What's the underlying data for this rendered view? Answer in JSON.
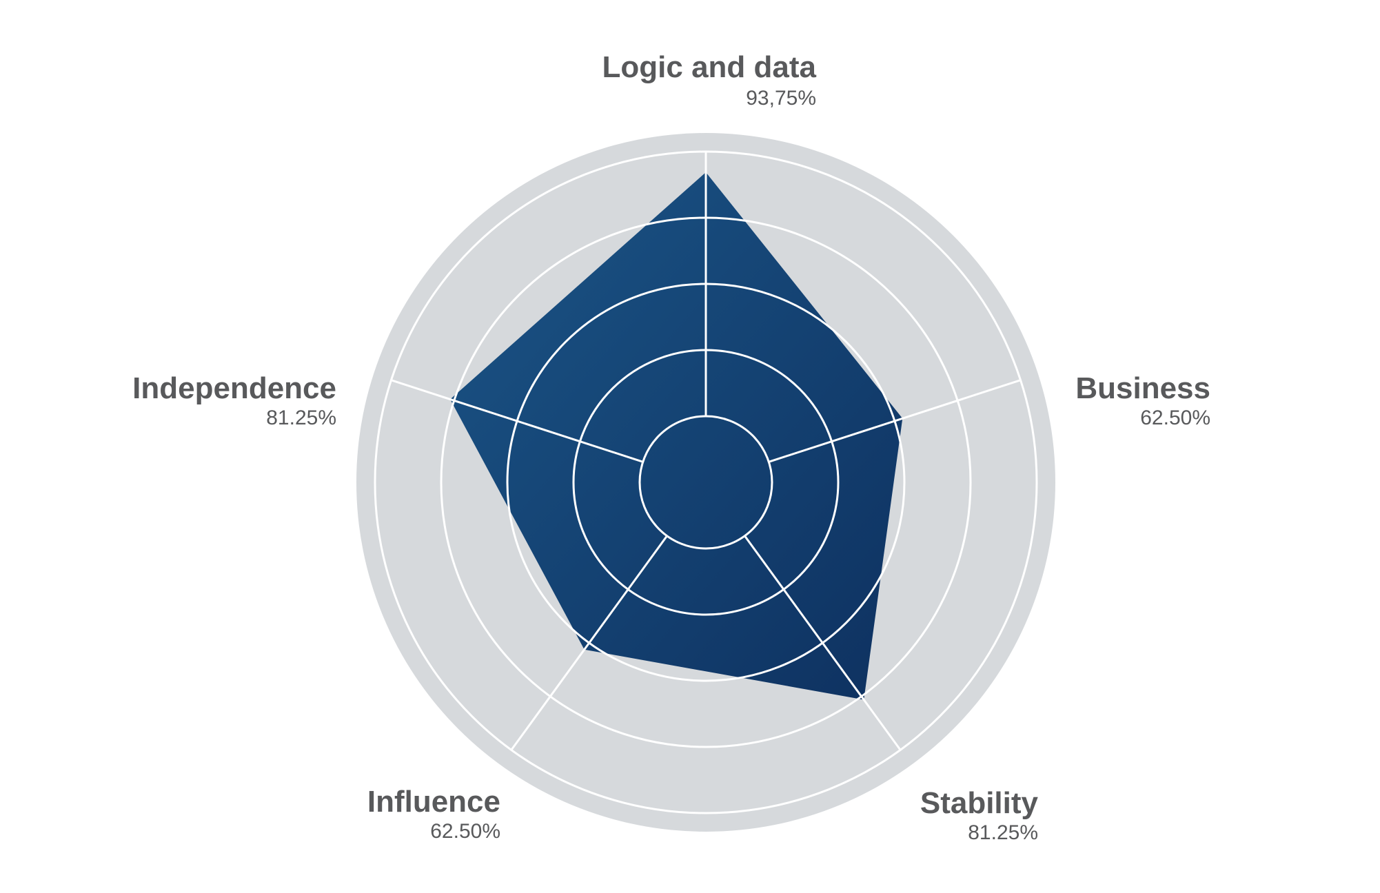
{
  "chart_data": {
    "type": "radar",
    "title": "",
    "rmax": 100,
    "rings": [
      20,
      40,
      60,
      80,
      100
    ],
    "grid": true,
    "colors": {
      "outer_band": "#d6d9dc",
      "grid_lines": "#ffffff",
      "area_fill_start": "#1b5587",
      "area_fill_end": "#0e3160",
      "label_text": "#58595b"
    },
    "axes": [
      {
        "name": "Logic and data",
        "value_label": "93,75%",
        "value": 93.75
      },
      {
        "name": "Business",
        "value_label": "62.50%",
        "value": 62.5
      },
      {
        "name": "Stability",
        "value_label": "81.25%",
        "value": 81.25
      },
      {
        "name": "Influence",
        "value_label": "62.50%",
        "value": 62.5
      },
      {
        "name": "Independence",
        "value_label": "81.25%",
        "value": 81.25
      }
    ]
  }
}
